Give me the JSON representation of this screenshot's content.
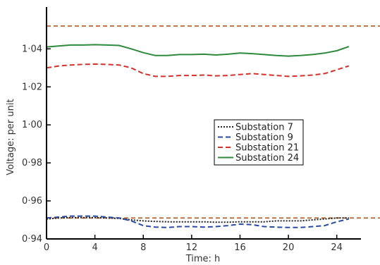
{
  "chart_data": {
    "type": "line",
    "xlabel": "Time: h",
    "ylabel": "Voltage: per unit",
    "xlim": [
      0,
      26
    ],
    "ylim": [
      0.94,
      1.062
    ],
    "x_ticks": [
      0,
      4,
      8,
      12,
      16,
      20,
      24
    ],
    "x_tick_labels": [
      "0",
      "4",
      "8",
      "12",
      "16",
      "20",
      "24"
    ],
    "y_ticks": [
      0.94,
      0.96,
      0.98,
      1.0,
      1.02,
      1.04
    ],
    "y_tick_labels": [
      "0·94",
      "0·96",
      "0·98",
      "1·00",
      "1·02",
      "1·04"
    ],
    "reference_lines": [
      {
        "y": 1.052,
        "color": "#b5561f",
        "style": "dashed"
      },
      {
        "y": 0.951,
        "color": "#b5561f",
        "style": "dashed"
      }
    ],
    "legend_position": "center-right",
    "series": [
      {
        "name": "Substation 7",
        "color": "#222222",
        "style": "dotted",
        "x": [
          0,
          1,
          2,
          3,
          4,
          5,
          6,
          7,
          8,
          9,
          10,
          11,
          12,
          13,
          14,
          15,
          16,
          17,
          18,
          19,
          20,
          21,
          22,
          23,
          24,
          25
        ],
        "y": [
          0.9505,
          0.951,
          0.9512,
          0.9512,
          0.9512,
          0.951,
          0.9508,
          0.95,
          0.9495,
          0.9492,
          0.949,
          0.949,
          0.949,
          0.949,
          0.9488,
          0.9488,
          0.949,
          0.949,
          0.949,
          0.9495,
          0.9495,
          0.9495,
          0.95,
          0.9505,
          0.951,
          0.951
        ]
      },
      {
        "name": "Substation 9",
        "color": "#2b4aa8",
        "style": "dashed",
        "x": [
          0,
          1,
          2,
          3,
          4,
          5,
          6,
          7,
          8,
          9,
          10,
          11,
          12,
          13,
          14,
          15,
          16,
          17,
          18,
          19,
          20,
          21,
          22,
          23,
          24,
          25
        ],
        "y": [
          0.951,
          0.9515,
          0.952,
          0.952,
          0.952,
          0.9515,
          0.951,
          0.9495,
          0.947,
          0.9462,
          0.946,
          0.9465,
          0.9465,
          0.9462,
          0.9465,
          0.947,
          0.9478,
          0.9475,
          0.9465,
          0.9462,
          0.946,
          0.946,
          0.9465,
          0.947,
          0.949,
          0.9505
        ]
      },
      {
        "name": "Substation 21",
        "color": "#d9302b",
        "style": "dashed",
        "x": [
          0,
          1,
          2,
          3,
          4,
          5,
          6,
          7,
          8,
          9,
          10,
          11,
          12,
          13,
          14,
          15,
          16,
          17,
          18,
          19,
          20,
          21,
          22,
          23,
          24,
          25
        ],
        "y": [
          1.03,
          1.031,
          1.0315,
          1.0318,
          1.032,
          1.0318,
          1.0315,
          1.03,
          1.027,
          1.0255,
          1.0255,
          1.026,
          1.026,
          1.0262,
          1.0258,
          1.026,
          1.0265,
          1.027,
          1.0265,
          1.026,
          1.0255,
          1.0258,
          1.0262,
          1.027,
          1.029,
          1.031
        ]
      },
      {
        "name": "Substation 24",
        "color": "#2e8a3c",
        "style": "solid",
        "x": [
          0,
          1,
          2,
          3,
          4,
          5,
          6,
          7,
          8,
          9,
          10,
          11,
          12,
          13,
          14,
          15,
          16,
          17,
          18,
          19,
          20,
          21,
          22,
          23,
          24,
          25
        ],
        "y": [
          1.041,
          1.0415,
          1.042,
          1.042,
          1.0422,
          1.042,
          1.0418,
          1.04,
          1.038,
          1.0365,
          1.0365,
          1.037,
          1.037,
          1.0372,
          1.0368,
          1.0372,
          1.0378,
          1.0375,
          1.037,
          1.0365,
          1.0362,
          1.0365,
          1.037,
          1.0378,
          1.039,
          1.0412
        ]
      }
    ]
  }
}
